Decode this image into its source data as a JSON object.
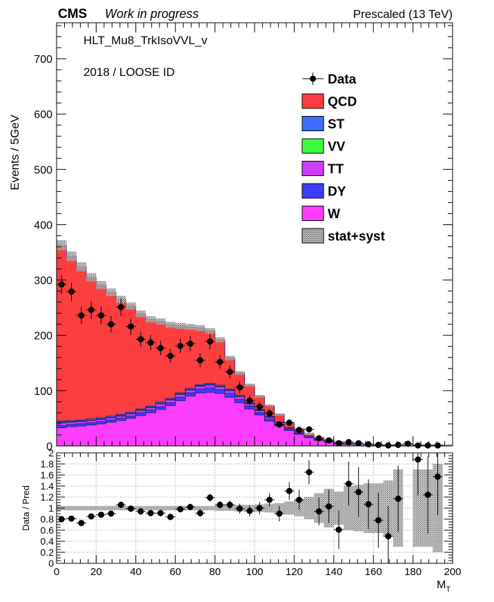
{
  "header": {
    "experiment": "CMS",
    "status": "Work in progress",
    "energy": "Prescaled (13 TeV)",
    "trigger": "HLT_Mu8_TrkIsoVVL_v",
    "selection": "2018 / LOOSE ID"
  },
  "chart_data": [
    {
      "type": "area",
      "stacked": true,
      "ylabel": "Events / 5GeV",
      "xlim": [
        0,
        200
      ],
      "ylim": [
        0,
        765
      ],
      "yticks": [
        "0",
        "100",
        "200",
        "300",
        "400",
        "500",
        "600",
        "700"
      ],
      "bin_width": 5,
      "bin_low_edges": [
        0,
        5,
        10,
        15,
        20,
        25,
        30,
        35,
        40,
        45,
        50,
        55,
        60,
        65,
        70,
        75,
        80,
        85,
        90,
        95,
        100,
        105,
        110,
        115,
        120,
        125,
        130,
        135,
        140,
        145,
        150,
        155,
        160,
        165,
        170,
        175,
        180,
        185,
        190,
        195
      ],
      "legend_position": "top-right",
      "legend": [
        {
          "label": "Data",
          "kind": "marker",
          "color": "#000000"
        },
        {
          "label": "QCD",
          "kind": "fill",
          "color": "#fc3e3e"
        },
        {
          "label": "ST",
          "kind": "fill",
          "color": "#3d6efd"
        },
        {
          "label": "VV",
          "kind": "fill",
          "color": "#3dfc3d"
        },
        {
          "label": "TT",
          "kind": "fill",
          "color": "#cc3dfd"
        },
        {
          "label": "DY",
          "kind": "fill",
          "color": "#3d3dfd"
        },
        {
          "label": "W",
          "kind": "fill",
          "color": "#fd3dfd"
        },
        {
          "label": "stat+syst",
          "kind": "hatch",
          "color": "#555555"
        }
      ],
      "series": [
        {
          "name": "W",
          "color": "#fd3dfd",
          "values": [
            33,
            35,
            36,
            38,
            40,
            43,
            46,
            50,
            55,
            60,
            66,
            73,
            82,
            90,
            96,
            97,
            95,
            88,
            78,
            67,
            56,
            45,
            36,
            28,
            21,
            15,
            10,
            7,
            4,
            3,
            2,
            1,
            1,
            0,
            0,
            0,
            0,
            0,
            0,
            0
          ]
        },
        {
          "name": "DY",
          "color": "#3d3dfd",
          "values": [
            4,
            4,
            4,
            4,
            4,
            4,
            4,
            4,
            5,
            5,
            5,
            5,
            6,
            6,
            7,
            8,
            7,
            7,
            6,
            5,
            4,
            4,
            3,
            2,
            2,
            1,
            1,
            1,
            0,
            0,
            0,
            0,
            0,
            0,
            0,
            0,
            0,
            0,
            0,
            0
          ]
        },
        {
          "name": "TT",
          "color": "#cc3dfd",
          "values": [
            5,
            4,
            4,
            4,
            4,
            4,
            4,
            4,
            4,
            4,
            5,
            5,
            5,
            5,
            5,
            5,
            5,
            5,
            5,
            4,
            4,
            3,
            3,
            2,
            2,
            2,
            1,
            1,
            1,
            1,
            1,
            0,
            0,
            0,
            0,
            0,
            0,
            0,
            0,
            0
          ]
        },
        {
          "name": "VV",
          "color": "#3dfc3d",
          "values": [
            1,
            1,
            1,
            1,
            1,
            1,
            1,
            1,
            1,
            1,
            1,
            1,
            1,
            1,
            1,
            1,
            1,
            1,
            1,
            1,
            1,
            1,
            0,
            0,
            0,
            0,
            0,
            0,
            0,
            0,
            0,
            0,
            0,
            0,
            0,
            0,
            0,
            0,
            0,
            0
          ]
        },
        {
          "name": "ST",
          "color": "#3d6efd",
          "values": [
            2,
            2,
            2,
            2,
            2,
            2,
            2,
            2,
            2,
            2,
            2,
            2,
            2,
            2,
            2,
            2,
            2,
            2,
            2,
            1,
            1,
            1,
            1,
            1,
            1,
            0,
            0,
            0,
            0,
            0,
            0,
            0,
            0,
            0,
            0,
            0,
            0,
            0,
            0,
            0
          ]
        },
        {
          "name": "QCD",
          "color": "#fc3e3e",
          "values": [
            318,
            297,
            277,
            256,
            240,
            224,
            208,
            192,
            172,
            157,
            146,
            133,
            121,
            111,
            102,
            95,
            82,
            56,
            40,
            32,
            24,
            19,
            14,
            9,
            5,
            4,
            3,
            2,
            2,
            2,
            1,
            1,
            1,
            1,
            1,
            1,
            1,
            1,
            1,
            1
          ]
        }
      ],
      "data_points": {
        "name": "Data",
        "x": [
          2.5,
          7.5,
          12.5,
          17.5,
          22.5,
          27.5,
          32.5,
          37.5,
          42.5,
          47.5,
          52.5,
          57.5,
          62.5,
          67.5,
          72.5,
          77.5,
          82.5,
          87.5,
          92.5,
          97.5,
          102.5,
          107.5,
          112.5,
          117.5,
          122.5,
          127.5,
          132.5,
          137.5,
          142.5,
          147.5,
          152.5,
          157.5,
          162.5,
          167.5,
          172.5,
          177.5,
          182.5,
          187.5,
          192.5
        ],
        "y": [
          292,
          279,
          236,
          246,
          236,
          220,
          251,
          216,
          193,
          187,
          177,
          163,
          181,
          185,
          155,
          189,
          152,
          134,
          106,
          82,
          71,
          59,
          39,
          42,
          29,
          30,
          14,
          10,
          5,
          7,
          5,
          3,
          2,
          1,
          2,
          4,
          1,
          1,
          1
        ]
      }
    },
    {
      "type": "scatter",
      "ylabel": "Data / Pred",
      "xlabel": "M_T",
      "xlim": [
        0,
        200
      ],
      "ylim": [
        0,
        2
      ],
      "xticks": [
        "0",
        "20",
        "40",
        "60",
        "80",
        "100",
        "120",
        "140",
        "160",
        "180",
        "200"
      ],
      "yticks": [
        "0",
        "0.2",
        "0.4",
        "0.6",
        "0.8",
        "1",
        "1.2",
        "1.4",
        "1.6",
        "1.8",
        "2"
      ],
      "grid": true,
      "x": [
        2.5,
        7.5,
        12.5,
        17.5,
        22.5,
        27.5,
        32.5,
        37.5,
        42.5,
        47.5,
        52.5,
        57.5,
        62.5,
        67.5,
        72.5,
        77.5,
        82.5,
        87.5,
        92.5,
        97.5,
        102.5,
        107.5,
        112.5,
        117.5,
        122.5,
        127.5,
        132.5,
        137.5,
        142.5,
        147.5,
        152.5,
        157.5,
        162.5,
        167.5,
        172.5,
        182.5,
        187.5,
        192.5
      ],
      "values": [
        0.8,
        0.81,
        0.73,
        0.85,
        0.88,
        0.9,
        1.06,
        0.99,
        0.94,
        0.91,
        0.91,
        0.84,
        0.98,
        1.02,
        0.91,
        1.19,
        1.06,
        1.06,
        0.99,
        0.95,
        1.0,
        1.15,
        0.9,
        1.31,
        1.15,
        1.65,
        0.94,
        1.03,
        0.61,
        1.44,
        1.29,
        1.07,
        0.78,
        0.49,
        1.17,
        1.88,
        1.24,
        1.57
      ],
      "errors": [
        0.05,
        0.05,
        0.05,
        0.05,
        0.05,
        0.05,
        0.06,
        0.06,
        0.06,
        0.06,
        0.06,
        0.06,
        0.06,
        0.06,
        0.07,
        0.07,
        0.07,
        0.08,
        0.09,
        0.1,
        0.11,
        0.12,
        0.14,
        0.16,
        0.18,
        0.22,
        0.25,
        0.3,
        0.35,
        0.4,
        0.45,
        0.45,
        0.5,
        0.55,
        0.6,
        0.65,
        0.7,
        0.7
      ],
      "band": [
        0.04,
        0.04,
        0.04,
        0.04,
        0.04,
        0.04,
        0.04,
        0.04,
        0.04,
        0.04,
        0.04,
        0.04,
        0.04,
        0.04,
        0.04,
        0.04,
        0.05,
        0.05,
        0.06,
        0.06,
        0.07,
        0.08,
        0.09,
        0.12,
        0.15,
        0.2,
        0.27,
        0.35,
        0.3,
        0.4,
        0.42,
        0.45,
        0.45,
        0.5,
        0.7,
        0.7,
        0.7,
        0.8
      ]
    }
  ]
}
